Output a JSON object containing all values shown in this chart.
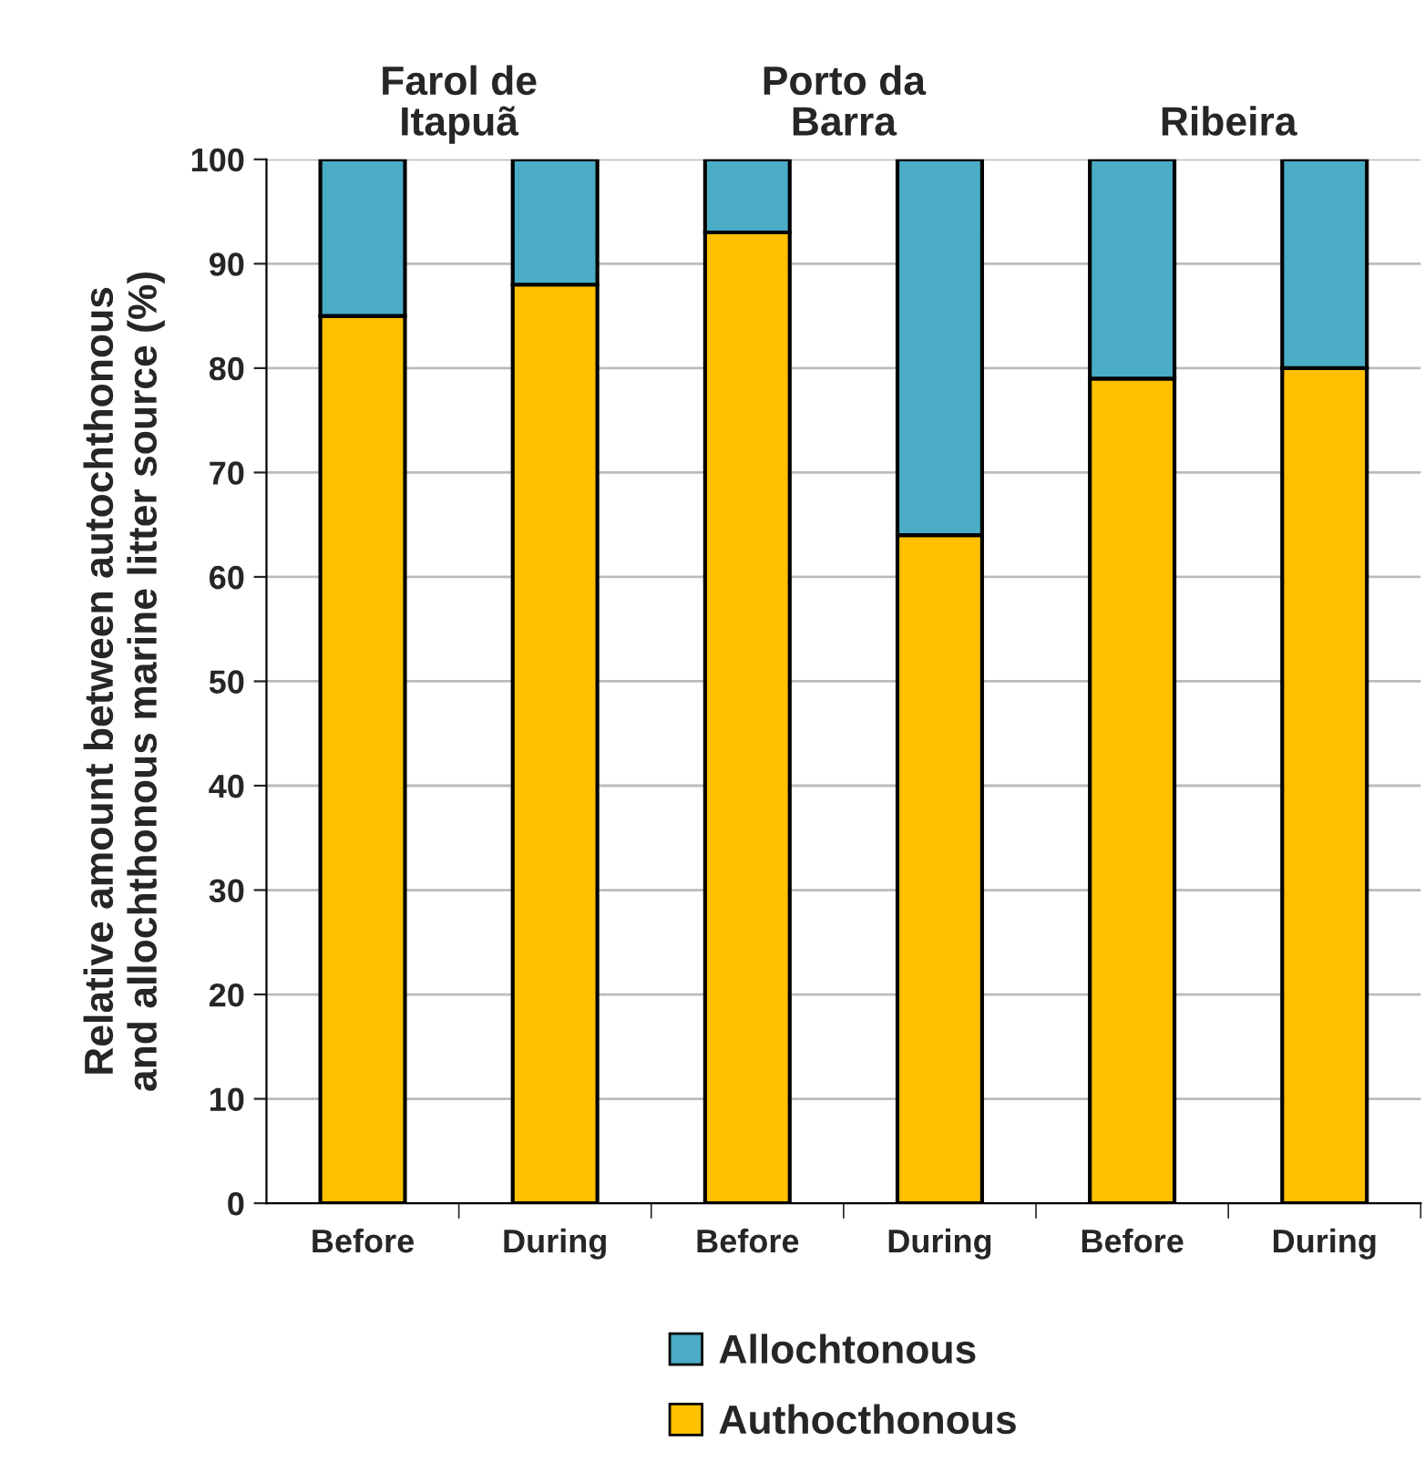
{
  "chart_data": {
    "type": "bar",
    "stacked": true,
    "ylabel": "Relative amount between autochthonous\nand allochthonous marine litter source (%)",
    "categories": [
      "Before",
      "During",
      "Before",
      "During",
      "Before",
      "During"
    ],
    "series": [
      {
        "name": "Authocthonous",
        "color": "#ffc000",
        "values": [
          85,
          88,
          93,
          64,
          79,
          80
        ]
      },
      {
        "name": "Allochtonous",
        "color": "#4bacc6",
        "values": [
          15,
          12,
          7,
          36,
          21,
          20
        ]
      }
    ],
    "annotations": [
      "Farol de\nItapuã",
      "Porto da\nBarra",
      "Ribeira"
    ],
    "ylim": [
      0,
      100
    ],
    "yticks": [
      0,
      10,
      20,
      30,
      40,
      50,
      60,
      70,
      80,
      90,
      100
    ],
    "grid": "y",
    "legend": "bottom"
  }
}
